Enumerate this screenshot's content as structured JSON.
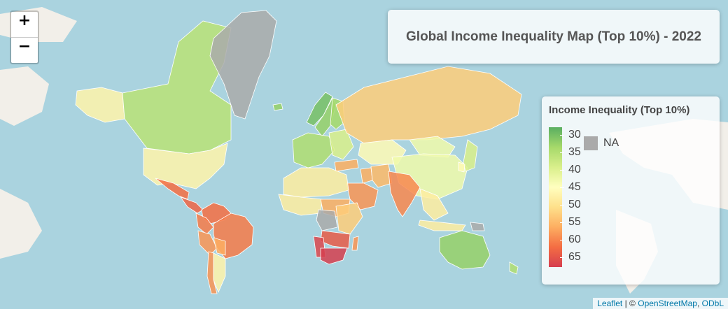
{
  "map": {
    "title": "Global Income Inequality Map (Top 10%) - 2022",
    "tiles": "OpenStreetMap",
    "ocean_color": "#aad3df",
    "land_color": "#f2efe9"
  },
  "zoom": {
    "in_label": "+",
    "out_label": "−"
  },
  "legend": {
    "title": "Income Inequality (Top 10%)",
    "ticks": [
      "30",
      "35",
      "40",
      "45",
      "50",
      "55",
      "60",
      "65"
    ],
    "na_label": "NA",
    "na_color": "#aaaaaa",
    "ramp_colors": [
      "#5aae61",
      "#a6d96a",
      "#d9ef8b",
      "#ffffbf",
      "#fee08b",
      "#fdae61",
      "#f46d43",
      "#d53e4f"
    ]
  },
  "attribution": {
    "leaflet": "Leaflet",
    "separator": "| ©",
    "osm": "OpenStreetMap",
    "license": "ODbL"
  },
  "regions": [
    {
      "name": "Canada",
      "value": 37
    },
    {
      "name": "Alaska (USA)",
      "value": 47
    },
    {
      "name": "United States",
      "value": 47
    },
    {
      "name": "Mexico",
      "value": 60
    },
    {
      "name": "Central America",
      "value": 61
    },
    {
      "name": "Colombia",
      "value": 59
    },
    {
      "name": "Venezuela",
      "value": 60
    },
    {
      "name": "Brazil",
      "value": 59
    },
    {
      "name": "Peru",
      "value": 57
    },
    {
      "name": "Bolivia",
      "value": 55
    },
    {
      "name": "Argentina",
      "value": 47
    },
    {
      "name": "Chile",
      "value": 57
    },
    {
      "name": "Greenland",
      "value": null
    },
    {
      "name": "Iceland",
      "value": 34
    },
    {
      "name": "Norway",
      "value": 32
    },
    {
      "name": "Sweden",
      "value": 34
    },
    {
      "name": "Finland",
      "value": 35
    },
    {
      "name": "Western Europe",
      "value": 36
    },
    {
      "name": "Eastern Europe",
      "value": 40
    },
    {
      "name": "Russia",
      "value": 52
    },
    {
      "name": "Kazakhstan",
      "value": 46
    },
    {
      "name": "Turkey",
      "value": 55
    },
    {
      "name": "Iran",
      "value": 54
    },
    {
      "name": "Saudi Arabia",
      "value": 57
    },
    {
      "name": "Iraq",
      "value": 55
    },
    {
      "name": "North Africa",
      "value": 48
    },
    {
      "name": "West Africa",
      "value": 48
    },
    {
      "name": "Central Africa",
      "value": 55
    },
    {
      "name": "DR Congo",
      "value": null
    },
    {
      "name": "East Africa",
      "value": 52
    },
    {
      "name": "Southern Africa",
      "value": 62
    },
    {
      "name": "South Africa",
      "value": 65
    },
    {
      "name": "Namibia",
      "value": 64
    },
    {
      "name": "Madagascar",
      "value": 57
    },
    {
      "name": "India",
      "value": 58
    },
    {
      "name": "China",
      "value": 43
    },
    {
      "name": "Mongolia",
      "value": 43
    },
    {
      "name": "Japan",
      "value": 40
    },
    {
      "name": "South Korea",
      "value": 46
    },
    {
      "name": "Southeast Asia",
      "value": 48
    },
    {
      "name": "Indonesia",
      "value": 48
    },
    {
      "name": "Papua New Guinea",
      "value": null
    },
    {
      "name": "Australia",
      "value": 34
    },
    {
      "name": "New Zealand",
      "value": 36
    }
  ]
}
